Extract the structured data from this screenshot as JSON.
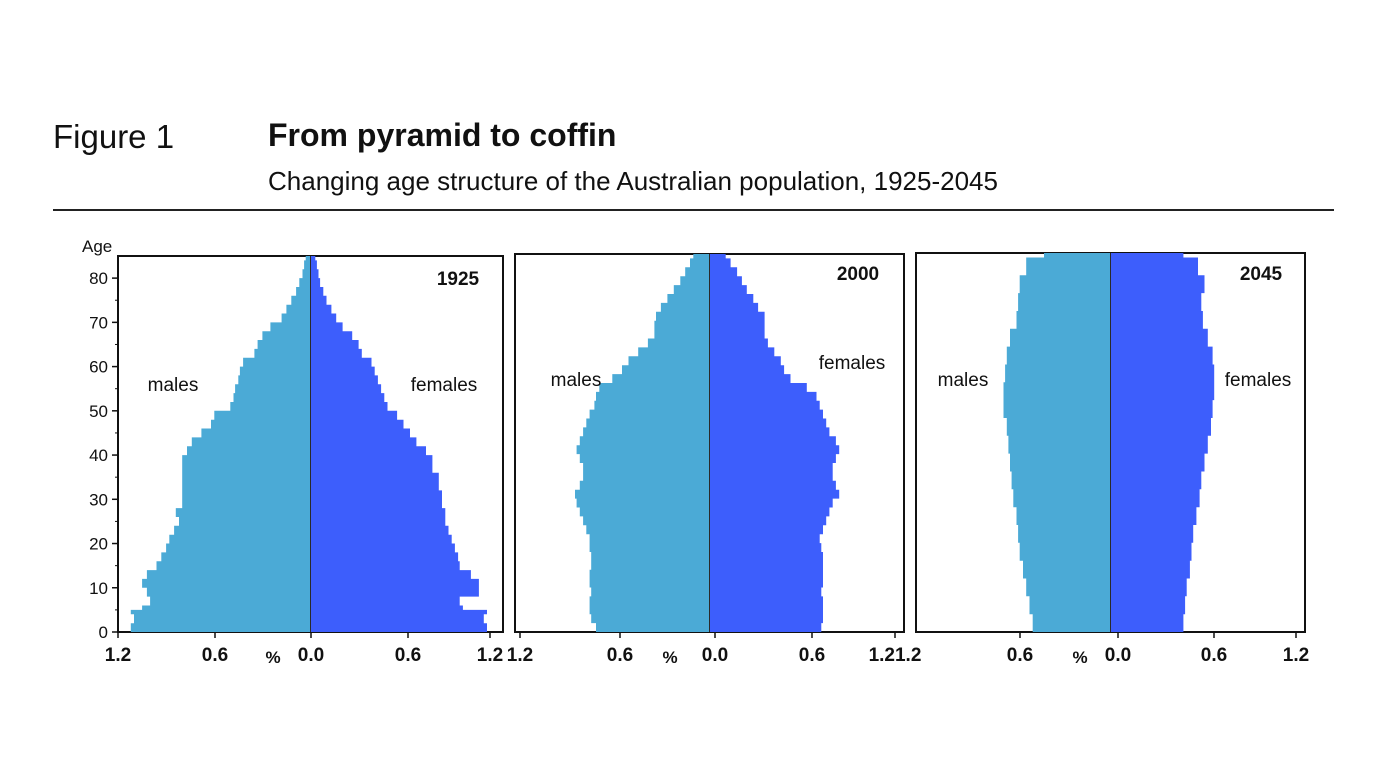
{
  "figure": {
    "label": "Figure 1",
    "title": "From pyramid to coffin",
    "subtitle": "Changing age structure of the Australian population, 1925-2045"
  },
  "colors": {
    "males": "#4baad6",
    "females": "#3d5efc"
  },
  "chart_data": [
    {
      "type": "bar",
      "orientation": "horizontal",
      "title": "1925",
      "ylabel": "Age",
      "xlabel": "%",
      "x_tick_labels": [
        "1.2",
        "0.6",
        "0.0",
        "0.6",
        "1.2"
      ],
      "y_tick_labels": [
        "0",
        "10",
        "20",
        "30",
        "40",
        "50",
        "60",
        "70",
        "80"
      ],
      "xlim": [
        -1.2,
        1.2
      ],
      "ylim": [
        0,
        85
      ],
      "series": [
        {
          "name": "males",
          "age": [
            0,
            2,
            4,
            5,
            6,
            8,
            10,
            12,
            14,
            16,
            18,
            20,
            22,
            24,
            26,
            28,
            30,
            32,
            34,
            36,
            38,
            40,
            42,
            44,
            46,
            48,
            50,
            52,
            54,
            56,
            58,
            60,
            62,
            64,
            66,
            68,
            70,
            72,
            74,
            76,
            78,
            80,
            82,
            84
          ],
          "values": [
            1.12,
            1.1,
            1.12,
            1.05,
            1.0,
            1.02,
            1.05,
            1.02,
            0.96,
            0.93,
            0.9,
            0.88,
            0.85,
            0.82,
            0.84,
            0.8,
            0.8,
            0.8,
            0.8,
            0.8,
            0.8,
            0.77,
            0.74,
            0.68,
            0.62,
            0.6,
            0.5,
            0.48,
            0.47,
            0.45,
            0.44,
            0.42,
            0.35,
            0.33,
            0.3,
            0.25,
            0.18,
            0.15,
            0.12,
            0.09,
            0.07,
            0.05,
            0.04,
            0.03
          ]
        },
        {
          "name": "females",
          "age": [
            0,
            2,
            4,
            5,
            6,
            8,
            10,
            12,
            14,
            16,
            18,
            20,
            22,
            24,
            26,
            28,
            30,
            32,
            34,
            36,
            38,
            40,
            42,
            44,
            46,
            48,
            50,
            52,
            54,
            56,
            58,
            60,
            62,
            64,
            66,
            68,
            70,
            72,
            74,
            76,
            78,
            80,
            82,
            84
          ],
          "values": [
            1.1,
            1.08,
            1.1,
            0.95,
            0.93,
            1.05,
            1.05,
            1.0,
            0.93,
            0.92,
            0.9,
            0.88,
            0.86,
            0.84,
            0.84,
            0.82,
            0.82,
            0.8,
            0.8,
            0.76,
            0.76,
            0.72,
            0.66,
            0.62,
            0.58,
            0.54,
            0.48,
            0.46,
            0.44,
            0.42,
            0.4,
            0.38,
            0.32,
            0.3,
            0.26,
            0.2,
            0.16,
            0.13,
            0.1,
            0.08,
            0.06,
            0.05,
            0.04,
            0.03
          ]
        }
      ],
      "annotations": [
        "males",
        "females"
      ]
    },
    {
      "type": "bar",
      "orientation": "horizontal",
      "title": "2000",
      "xlabel": "%",
      "x_tick_labels": [
        "1.2",
        "0.6",
        "0.0",
        "0.6",
        "1.21.2"
      ],
      "xlim": [
        -1.2,
        1.2
      ],
      "ylim": [
        0,
        85
      ],
      "series": [
        {
          "name": "males",
          "age": [
            0,
            2,
            4,
            6,
            8,
            10,
            12,
            14,
            16,
            18,
            20,
            22,
            24,
            26,
            28,
            30,
            32,
            34,
            36,
            38,
            40,
            42,
            44,
            46,
            48,
            50,
            52,
            54,
            56,
            58,
            60,
            62,
            64,
            66,
            68,
            70,
            72,
            74,
            76,
            78,
            80,
            82,
            84
          ],
          "values": [
            0.7,
            0.73,
            0.74,
            0.74,
            0.73,
            0.74,
            0.74,
            0.73,
            0.73,
            0.74,
            0.74,
            0.76,
            0.78,
            0.8,
            0.82,
            0.83,
            0.8,
            0.78,
            0.78,
            0.8,
            0.82,
            0.8,
            0.78,
            0.76,
            0.74,
            0.71,
            0.7,
            0.68,
            0.6,
            0.54,
            0.5,
            0.44,
            0.38,
            0.34,
            0.34,
            0.33,
            0.3,
            0.26,
            0.22,
            0.18,
            0.15,
            0.12,
            0.1
          ]
        },
        {
          "name": "females",
          "age": [
            0,
            2,
            4,
            6,
            8,
            10,
            12,
            14,
            16,
            18,
            20,
            22,
            24,
            26,
            28,
            30,
            32,
            34,
            36,
            38,
            40,
            42,
            44,
            46,
            48,
            50,
            52,
            54,
            56,
            58,
            60,
            62,
            64,
            66,
            68,
            70,
            72,
            74,
            76,
            78,
            80,
            82,
            84
          ],
          "values": [
            0.69,
            0.7,
            0.7,
            0.7,
            0.69,
            0.7,
            0.7,
            0.7,
            0.7,
            0.69,
            0.68,
            0.7,
            0.72,
            0.74,
            0.76,
            0.8,
            0.78,
            0.76,
            0.76,
            0.78,
            0.8,
            0.78,
            0.74,
            0.72,
            0.7,
            0.68,
            0.66,
            0.6,
            0.5,
            0.46,
            0.44,
            0.4,
            0.36,
            0.34,
            0.34,
            0.34,
            0.3,
            0.27,
            0.23,
            0.2,
            0.17,
            0.13,
            0.1
          ]
        }
      ],
      "annotations": [
        "males",
        "females"
      ]
    },
    {
      "type": "bar",
      "orientation": "horizontal",
      "title": "2045",
      "xlabel": "%",
      "x_tick_labels": [
        "0.6",
        "0.0",
        "0.6",
        "1.2"
      ],
      "xlim": [
        -1.2,
        1.2
      ],
      "ylim": [
        0,
        85
      ],
      "series": [
        {
          "name": "males",
          "age": [
            0,
            4,
            8,
            12,
            16,
            20,
            24,
            28,
            32,
            36,
            40,
            44,
            48,
            52,
            56,
            60,
            64,
            68,
            72,
            76,
            80,
            84
          ],
          "values": [
            0.48,
            0.5,
            0.52,
            0.54,
            0.56,
            0.57,
            0.58,
            0.6,
            0.61,
            0.62,
            0.63,
            0.64,
            0.66,
            0.66,
            0.65,
            0.64,
            0.62,
            0.58,
            0.57,
            0.56,
            0.52,
            0.41
          ]
        },
        {
          "name": "females",
          "age": [
            0,
            4,
            8,
            12,
            16,
            20,
            24,
            28,
            32,
            36,
            40,
            44,
            48,
            52,
            56,
            60,
            64,
            68,
            72,
            76,
            80,
            84
          ],
          "values": [
            0.45,
            0.46,
            0.47,
            0.49,
            0.5,
            0.51,
            0.53,
            0.55,
            0.56,
            0.58,
            0.6,
            0.62,
            0.63,
            0.64,
            0.64,
            0.63,
            0.6,
            0.57,
            0.56,
            0.58,
            0.54,
            0.45
          ]
        }
      ],
      "annotations": [
        "males",
        "females"
      ]
    }
  ]
}
